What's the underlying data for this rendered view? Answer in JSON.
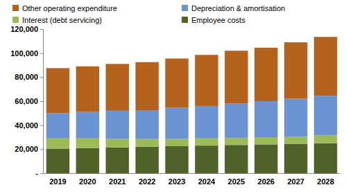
{
  "chart_data": {
    "type": "bar",
    "stacked": true,
    "grid": false,
    "categories": [
      "2019",
      "2020",
      "2021",
      "2022",
      "2023",
      "2024",
      "2025",
      "2026",
      "2027",
      "2028"
    ],
    "series": [
      {
        "name": "Employee costs",
        "color": "#4f6228",
        "values": [
          20500,
          21000,
          21500,
          22000,
          22500,
          23000,
          23500,
          24000,
          24500,
          25000
        ]
      },
      {
        "name": "Interest (debt servicing)",
        "color": "#9bbb59",
        "values": [
          8500,
          8000,
          7000,
          6500,
          6000,
          6000,
          6000,
          6000,
          6000,
          6500
        ]
      },
      {
        "name": "Depreciation & amortisation",
        "color": "#6a93d4",
        "values": [
          21000,
          22000,
          23500,
          24000,
          26000,
          27000,
          28500,
          30000,
          31500,
          33000
        ]
      },
      {
        "name": "Other operating expenditure",
        "color": "#b5621e",
        "values": [
          37500,
          38000,
          39000,
          40000,
          41000,
          42500,
          44000,
          44500,
          47000,
          49000
        ]
      }
    ],
    "ylim": [
      0,
      120000
    ],
    "yticks": [
      {
        "value": 0,
        "label": "-"
      },
      {
        "value": 20000,
        "label": "20,000"
      },
      {
        "value": 40000,
        "label": "40,000"
      },
      {
        "value": 60000,
        "label": "60,000"
      },
      {
        "value": 80000,
        "label": "80,000"
      },
      {
        "value": 100000,
        "label": "100,000"
      },
      {
        "value": 120000,
        "label": "120,000"
      }
    ]
  }
}
